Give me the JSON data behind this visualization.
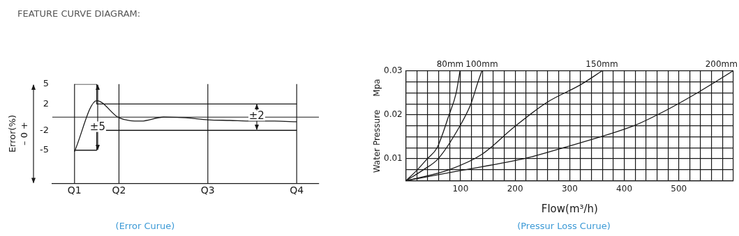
{
  "chart_data": [
    {
      "type": "line",
      "title": "FEATURE CURVE DIAGRAM:",
      "ylabel": "Error(%)",
      "categories": [
        null,
        "Q1",
        null,
        "Q2",
        null,
        null,
        null,
        "Q3",
        null,
        null,
        null,
        "Q4",
        null
      ],
      "annotations": [
        "±5",
        "±2",
        "– 0 +",
        "(Error Curue)"
      ],
      "ylim": [
        -10,
        5
      ],
      "yticks": [
        5,
        2,
        -2,
        -5
      ],
      "grid": false,
      "ref_lines": [
        {
          "axis": "x",
          "value": "Q1"
        },
        {
          "axis": "x",
          "value": "Q2"
        },
        {
          "axis": "x",
          "value": "Q3"
        },
        {
          "axis": "x",
          "value": "Q4"
        },
        {
          "axis": "y",
          "value": 0
        }
      ],
      "series": [
        {
          "color": "#1a1a1a",
          "values": [
            null,
            -5.2,
            2.5,
            -0.1,
            -0.6,
            0,
            -0.1,
            -0.4,
            -0.5,
            -0.6,
            -0.6,
            -0.7,
            null
          ]
        },
        {
          "type": "step",
          "color": "#1a1a1a",
          "values": [
            null,
            5,
            5,
            2,
            2,
            2,
            2,
            2,
            2,
            2,
            2,
            2,
            null
          ]
        },
        {
          "type": "step",
          "color": "#1a1a1a",
          "values": [
            null,
            -5,
            -5,
            -2,
            -2,
            -2,
            -2,
            -2,
            -2,
            -2,
            -2,
            -2,
            null
          ]
        }
      ]
    },
    {
      "type": "line",
      "xlabel": "Flow(m³/h)",
      "ylabel": "Water Pressure     Mpa",
      "annotations": [
        "(Pressur Loss Curue)"
      ],
      "xlim": [
        0,
        600
      ],
      "xticks": [
        {
          "value": 0,
          "label": null
        },
        {
          "value": 20,
          "label": null
        },
        {
          "value": 40,
          "label": null
        },
        {
          "value": 60,
          "label": null
        },
        {
          "value": 80,
          "label": null
        },
        100,
        {
          "value": 120,
          "label": null
        },
        {
          "value": 140,
          "label": null
        },
        {
          "value": 160,
          "label": null
        },
        {
          "value": 180,
          "label": null
        },
        200,
        {
          "value": 220,
          "label": null
        },
        {
          "value": 240,
          "label": null
        },
        {
          "value": 260,
          "label": null
        },
        {
          "value": 280,
          "label": null
        },
        300,
        {
          "value": 320,
          "label": null
        },
        {
          "value": 340,
          "label": null
        },
        {
          "value": 360,
          "label": null
        },
        {
          "value": 380,
          "label": null
        },
        400,
        {
          "value": 420,
          "label": null
        },
        {
          "value": 440,
          "label": null
        },
        {
          "value": 460,
          "label": null
        },
        {
          "value": 480,
          "label": null
        },
        500,
        {
          "value": 520,
          "label": null
        },
        {
          "value": 540,
          "label": null
        },
        {
          "value": 560,
          "label": null
        },
        {
          "value": 580,
          "label": null
        },
        {
          "value": 600,
          "label": null
        }
      ],
      "ylim": [
        0.005,
        0.03
      ],
      "yticks": [
        {
          "value": 0.005,
          "label": null
        },
        {
          "value": 0.0075,
          "label": null
        },
        0.01,
        {
          "value": 0.0125,
          "label": null
        },
        {
          "value": 0.015,
          "label": null
        },
        {
          "value": 0.0175,
          "label": null
        },
        0.02,
        {
          "value": 0.0225,
          "label": null
        },
        {
          "value": 0.025,
          "label": null
        },
        {
          "value": 0.0275,
          "label": null
        },
        0.03
      ],
      "grid": true,
      "series": [
        {
          "name": "80mm",
          "color": "#1a1a1a",
          "x": [
            0,
            21,
            39,
            57,
            79,
            92,
            99
          ],
          "values": [
            0.005,
            0.0075,
            0.01,
            0.0125,
            0.02,
            0.025,
            0.03
          ]
        },
        {
          "name": "100mm",
          "color": "#1a1a1a",
          "x": [
            0,
            32,
            59,
            99,
            119,
            132,
            139
          ],
          "values": [
            0.005,
            0.0075,
            0.01,
            0.0175,
            0.0225,
            0.0275,
            0.03
          ]
        },
        {
          "name": "150mm",
          "color": "#1a1a1a",
          "x": [
            0,
            79,
            139,
            199,
            259,
            319,
            359
          ],
          "values": [
            0.005,
            0.0075,
            0.011,
            0.0173,
            0.0229,
            0.0268,
            0.03
          ]
        },
        {
          "name": "200mm",
          "color": "#1a1a1a",
          "x": [
            0,
            99,
            219,
            299,
            359,
            419,
            479,
            539,
            599
          ],
          "values": [
            0.005,
            0.0073,
            0.0101,
            0.0129,
            0.0151,
            0.0176,
            0.0212,
            0.0254,
            0.03
          ]
        }
      ]
    }
  ]
}
